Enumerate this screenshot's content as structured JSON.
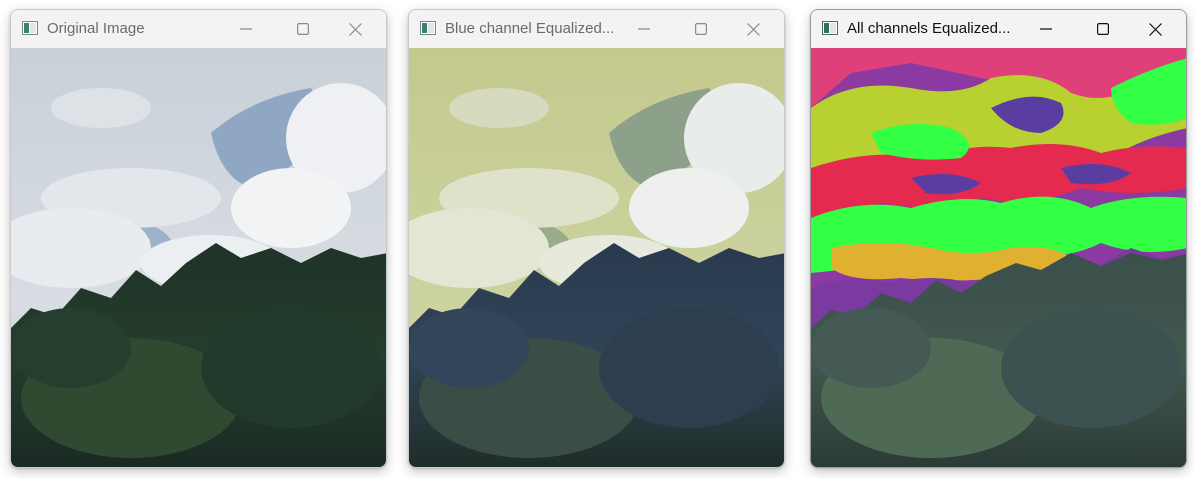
{
  "windows": [
    {
      "title": "Original Image",
      "focused": false
    },
    {
      "title": "Blue channel Equalized...",
      "focused": false
    },
    {
      "title": "All channels Equalized...",
      "focused": true
    }
  ],
  "controls": {
    "minimize_icon": "minimize-icon",
    "maximize_icon": "maximize-icon",
    "close_icon": "close-icon"
  },
  "colors": {
    "titlebar": "#f3f3f3",
    "inactive_title": "#6b6b6b",
    "active_title": "#111111"
  }
}
